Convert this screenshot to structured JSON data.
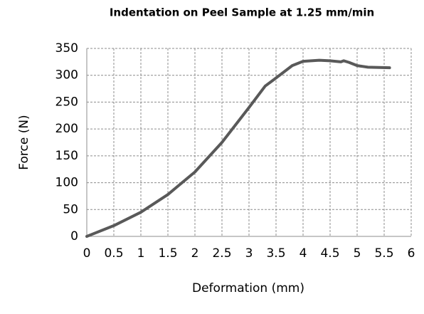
{
  "chart_data": {
    "type": "line",
    "title": "Indentation on Peel Sample at 1.25 mm/min",
    "x_label": "Deformation (mm)",
    "y_label": "Force (N)",
    "x": [
      0,
      0.5,
      1,
      1.5,
      2,
      2.5,
      3,
      3.3,
      3.5,
      3.8,
      4,
      4.3,
      4.5,
      4.7,
      4.75,
      4.85,
      5,
      5.2,
      5.6
    ],
    "series": [
      {
        "name": "Force",
        "color": "#595959",
        "values": [
          0,
          20,
          45,
          78,
          120,
          175,
          240,
          280,
          295,
          318,
          326,
          328,
          327,
          325,
          327,
          324,
          318,
          315,
          314
        ]
      }
    ],
    "xlim": [
      0,
      6
    ],
    "xticks": [
      0,
      0.5,
      1,
      1.5,
      2,
      2.5,
      3,
      3.5,
      4,
      4.5,
      5,
      5.5,
      6
    ],
    "ylim": [
      0,
      350
    ],
    "yticks": [
      0,
      50,
      100,
      150,
      200,
      250,
      300,
      350
    ],
    "grid": true
  }
}
